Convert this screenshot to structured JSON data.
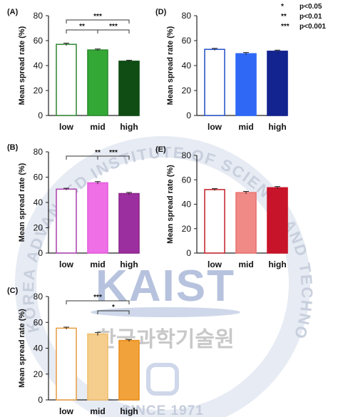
{
  "legend": [
    {
      "stars": "*",
      "label": "p<0.05"
    },
    {
      "stars": "**",
      "label": "p<0.01"
    },
    {
      "stars": "***",
      "label": "p<0.001"
    }
  ],
  "watermark": {
    "main": "KAIST",
    "korean": "한국과학기술원",
    "since": "SINCE 1971",
    "ring": "KOREA ADVANCED INSTITUTE OF SCIENCE AND TECHNOLOGY"
  },
  "chart_data": [
    {
      "type": "bar",
      "panel": "(A)",
      "categories": [
        "low",
        "mid",
        "high"
      ],
      "values": [
        57,
        52.5,
        43.5
      ],
      "errors": [
        1,
        0.8,
        0.8
      ],
      "ylabel": "Mean spread rate (%)",
      "ylim": [
        0,
        80
      ],
      "yticks": [
        0,
        20,
        40,
        60,
        80
      ],
      "colors": {
        "fill": [
          "#ffffff",
          "#34a835",
          "#0f4d14"
        ],
        "edge": [
          "#3a8a3c",
          "#2c8c2e",
          "#0f4d14"
        ]
      },
      "significance": [
        {
          "from": 0,
          "to": 2,
          "level": 0,
          "label": "***"
        },
        {
          "from": 0,
          "to": 1,
          "level": 1,
          "label": "**"
        },
        {
          "from": 1,
          "to": 2,
          "level": 1,
          "label": "***"
        }
      ]
    },
    {
      "type": "bar",
      "panel": "(D)",
      "categories": [
        "low",
        "mid",
        "high"
      ],
      "values": [
        53,
        49.5,
        51.5
      ],
      "errors": [
        0.8,
        1,
        0.9
      ],
      "ylabel": "Mean spread rate (%)",
      "ylim": [
        0,
        80
      ],
      "yticks": [
        0,
        20,
        40,
        60,
        80
      ],
      "colors": {
        "fill": [
          "#ffffff",
          "#2f68f5",
          "#13238f"
        ],
        "edge": [
          "#2f58c8",
          "#2f68f5",
          "#13238f"
        ]
      },
      "significance": []
    },
    {
      "type": "bar",
      "panel": "(B)",
      "categories": [
        "low",
        "mid",
        "high"
      ],
      "values": [
        50.5,
        55.5,
        47
      ],
      "errors": [
        0.7,
        1,
        0.9
      ],
      "ylabel": "Mean spread rate (%)",
      "ylim": [
        0,
        80
      ],
      "yticks": [
        0,
        20,
        40,
        60,
        80
      ],
      "colors": {
        "fill": [
          "#ffffff",
          "#ef6fe6",
          "#9c2f9f"
        ],
        "edge": [
          "#b04ab4",
          "#e45ede",
          "#8e288f"
        ]
      },
      "significance": [
        {
          "from": 0,
          "to": 2,
          "level": 0,
          "label": "**"
        },
        {
          "from": 1,
          "to": 2,
          "level": 0,
          "label": "***"
        }
      ]
    },
    {
      "type": "bar",
      "panel": "(E)",
      "categories": [
        "low",
        "mid",
        "high"
      ],
      "values": [
        52,
        49.5,
        53.5
      ],
      "errors": [
        0.8,
        1,
        1
      ],
      "ylabel": "Mean spread rate (%)",
      "ylim": [
        0,
        80
      ],
      "yticks": [
        0,
        20,
        40,
        60,
        80
      ],
      "colors": {
        "fill": [
          "#ffffff",
          "#f08a86",
          "#c8142a"
        ],
        "edge": [
          "#c62c36",
          "#e97470",
          "#c8142a"
        ]
      },
      "significance": []
    },
    {
      "type": "bar",
      "panel": "(C)",
      "categories": [
        "low",
        "mid",
        "high"
      ],
      "values": [
        55.5,
        51,
        46
      ],
      "errors": [
        0.8,
        1.2,
        0.8
      ],
      "ylabel": "Mean spread rate (%)",
      "ylim": [
        0,
        80
      ],
      "yticks": [
        0,
        20,
        40,
        60,
        80
      ],
      "colors": {
        "fill": [
          "#ffffff",
          "#f5cd8d",
          "#f2a23a"
        ],
        "edge": [
          "#e8a24c",
          "#f0c06e",
          "#e8901f"
        ]
      },
      "significance": [
        {
          "from": 0,
          "to": 2,
          "level": 0,
          "label": "***"
        },
        {
          "from": 1,
          "to": 2,
          "level": 1,
          "label": "*"
        }
      ]
    }
  ]
}
